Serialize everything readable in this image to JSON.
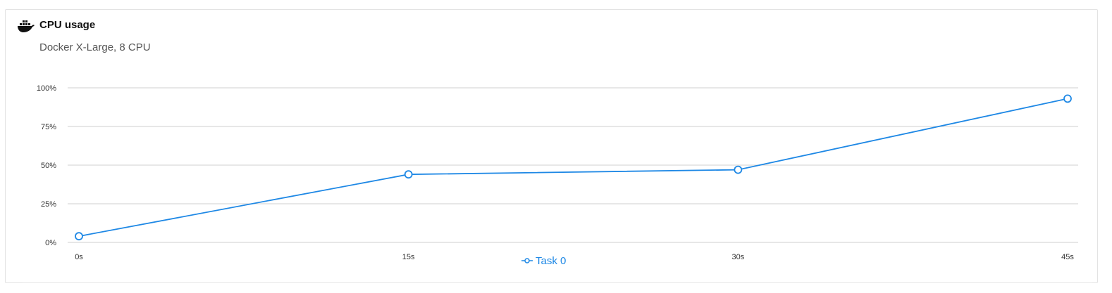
{
  "header": {
    "title": "CPU usage",
    "subtitle": "Docker X-Large, 8 CPU",
    "icon": "docker-whale-icon"
  },
  "colors": {
    "series": "#1e88e5",
    "grid": "#cfcfcf",
    "tick_text": "#333333"
  },
  "chart_data": {
    "type": "line",
    "x": [
      "0s",
      "15s",
      "30s",
      "45s"
    ],
    "ylim": [
      0,
      100
    ],
    "yticks": [
      "0%",
      "25%",
      "50%",
      "75%",
      "100%"
    ],
    "ytick_values": [
      0,
      25,
      50,
      75,
      100
    ],
    "grid": true,
    "legend_position": "bottom-center",
    "series": [
      {
        "name": "Task 0",
        "values": [
          4,
          44,
          47,
          93
        ]
      }
    ]
  }
}
